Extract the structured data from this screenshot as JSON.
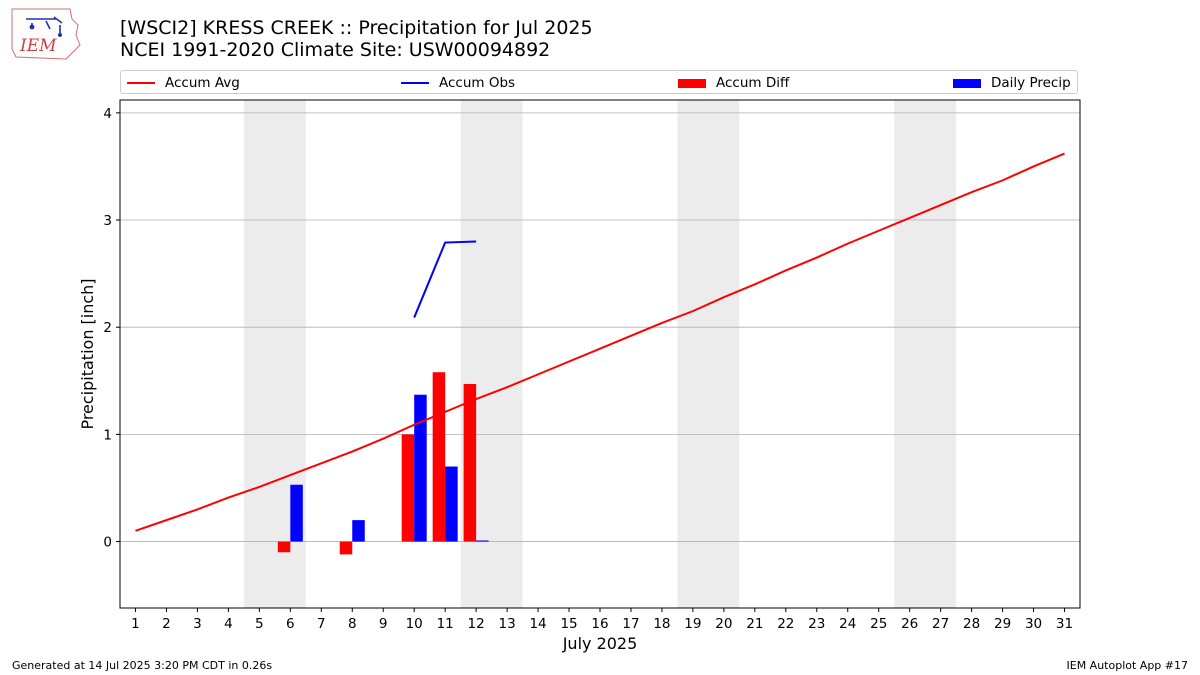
{
  "header": {
    "title_line1": "[WSCI2] KRESS CREEK :: Precipitation for Jul 2025",
    "title_line2": "NCEI 1991-2020 Climate Site: USW00094892",
    "logo_text": "IEM"
  },
  "footer": {
    "generated": "Generated at 14 Jul 2025 3:20 PM CDT in 0.26s",
    "app": "IEM Autoplot App #17"
  },
  "colors": {
    "accum_avg": "#ff0000",
    "accum_obs": "#0000ff",
    "accum_diff": "#ff0000",
    "daily_precip": "#0000ff",
    "weekend_shade": "#ececec",
    "grid": "#b0b0b0"
  },
  "chart_data": {
    "type": "bar",
    "xlabel": "July 2025",
    "ylabel": "Precipitation [inch]",
    "ylim": [
      -0.62,
      4.12
    ],
    "xlim": [
      0.5,
      31.5
    ],
    "yticks": [
      0,
      1,
      2,
      3,
      4
    ],
    "x": [
      1,
      2,
      3,
      4,
      5,
      6,
      7,
      8,
      9,
      10,
      11,
      12,
      13,
      14,
      15,
      16,
      17,
      18,
      19,
      20,
      21,
      22,
      23,
      24,
      25,
      26,
      27,
      28,
      29,
      30,
      31
    ],
    "weekend_spans": [
      [
        4.5,
        6.5
      ],
      [
        11.5,
        13.5
      ],
      [
        18.5,
        20.5
      ],
      [
        25.5,
        27.5
      ]
    ],
    "grid": true,
    "legend": [
      "Accum Avg",
      "Accum Obs",
      "Accum Diff",
      "Daily Precip"
    ],
    "legend_position": "top",
    "series": [
      {
        "name": "Accum Avg",
        "type": "line",
        "x": [
          1,
          2,
          3,
          4,
          5,
          6,
          7,
          8,
          9,
          10,
          11,
          12,
          13,
          14,
          15,
          16,
          17,
          18,
          19,
          20,
          21,
          22,
          23,
          24,
          25,
          26,
          27,
          28,
          29,
          30,
          31
        ],
        "values": [
          0.1,
          0.2,
          0.3,
          0.41,
          0.51,
          0.62,
          0.73,
          0.84,
          0.96,
          1.09,
          1.21,
          1.33,
          1.44,
          1.56,
          1.68,
          1.8,
          1.92,
          2.04,
          2.15,
          2.28,
          2.4,
          2.53,
          2.65,
          2.78,
          2.9,
          3.02,
          3.14,
          3.26,
          3.37,
          3.5,
          3.62
        ]
      },
      {
        "name": "Accum Obs",
        "type": "line",
        "x": [
          10,
          11,
          12
        ],
        "values": [
          2.09,
          2.79,
          2.8
        ]
      },
      {
        "name": "Accum Diff",
        "type": "bar",
        "x": [
          6,
          8,
          10,
          11,
          12
        ],
        "values": [
          -0.1,
          -0.12,
          1.0,
          1.58,
          1.47
        ]
      },
      {
        "name": "Daily Precip",
        "type": "bar",
        "x": [
          6,
          8,
          10,
          11,
          12
        ],
        "values": [
          0.53,
          0.2,
          1.37,
          0.7,
          0.01
        ]
      }
    ]
  }
}
